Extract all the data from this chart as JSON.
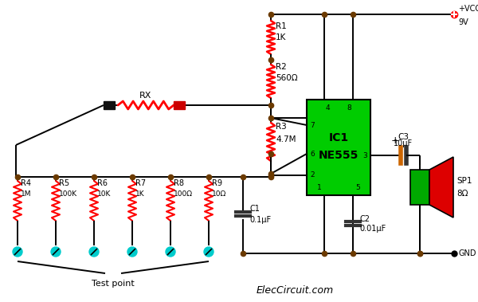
{
  "bg_color": "#ffffff",
  "wire_color": "#000000",
  "resistor_color": "#ff0000",
  "dot_color": "#6b3a00",
  "ic_color": "#00cc00",
  "speaker_cone_color": "#dd0000",
  "speaker_body_color": "#00aa00",
  "cap_color_dark": "#333333",
  "cap_color_orange": "#cc6600",
  "probe_color": "#00cccc",
  "title": "ElecCircuit.com",
  "ic_label1": "IC1",
  "ic_label2": "NE555",
  "range_resistors": [
    {
      "label": "R4",
      "value": "1M"
    },
    {
      "label": "R5",
      "value": "100K"
    },
    {
      "label": "R6",
      "value": "10K"
    },
    {
      "label": "R7",
      "value": "1K"
    },
    {
      "label": "R8",
      "value": "100Ω"
    },
    {
      "label": "R9",
      "value": "10Ω"
    }
  ],
  "test_point_label": "Test point",
  "figsize": [
    6.0,
    3.79
  ],
  "dpi": 100
}
